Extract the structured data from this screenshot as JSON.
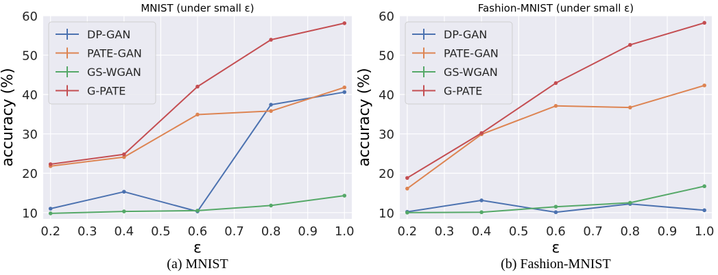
{
  "colors": {
    "plot_bg": "#eaeaf2",
    "grid": "#ffffff",
    "text": "#262626",
    "series": [
      "#4c72b0",
      "#dd8452",
      "#55a868",
      "#c44e52"
    ]
  },
  "chart_data": [
    {
      "type": "line",
      "title": "MNIST (under small ε)",
      "xlabel": "ε",
      "ylabel": "accuracy (%)",
      "x": [
        0.2,
        0.4,
        0.6,
        0.8,
        1.0
      ],
      "xticks": [
        "0.2",
        "0.3",
        "0.4",
        "0.5",
        "0.6",
        "0.7",
        "0.8",
        "0.9",
        "1.0"
      ],
      "yticks": [
        "10",
        "20",
        "30",
        "40",
        "50",
        "60"
      ],
      "xlim": [
        0.18,
        1.02
      ],
      "ylim": [
        8.4,
        60.0
      ],
      "grid": true,
      "legend": "upper-left",
      "series": [
        {
          "name": "DP-GAN",
          "values": [
            11.0,
            15.3,
            10.3,
            37.4,
            40.6
          ]
        },
        {
          "name": "PATE-GAN",
          "values": [
            21.8,
            24.1,
            34.9,
            35.8,
            41.8
          ]
        },
        {
          "name": "GS-WGAN",
          "values": [
            9.8,
            10.3,
            10.5,
            11.8,
            14.3
          ]
        },
        {
          "name": "G-PATE",
          "values": [
            22.3,
            24.8,
            42.0,
            53.9,
            58.1
          ]
        }
      ],
      "caption": "(a) MNIST"
    },
    {
      "type": "line",
      "title": "Fashion-MNIST (under small ε)",
      "xlabel": "ε",
      "ylabel": "accuracy (%)",
      "x": [
        0.2,
        0.4,
        0.6,
        0.8,
        1.0
      ],
      "xticks": [
        "0.2",
        "0.3",
        "0.4",
        "0.5",
        "0.6",
        "0.7",
        "0.8",
        "0.9",
        "1.0"
      ],
      "yticks": [
        "10",
        "20",
        "30",
        "40",
        "50",
        "60"
      ],
      "xlim": [
        0.18,
        1.02
      ],
      "ylim": [
        8.4,
        60.0
      ],
      "grid": true,
      "legend": "upper-left",
      "series": [
        {
          "name": "DP-GAN",
          "values": [
            10.2,
            13.1,
            10.1,
            12.2,
            10.6
          ]
        },
        {
          "name": "PATE-GAN",
          "values": [
            16.1,
            29.9,
            37.1,
            36.7,
            42.3
          ]
        },
        {
          "name": "GS-WGAN",
          "values": [
            10.0,
            10.1,
            11.5,
            12.5,
            16.7
          ]
        },
        {
          "name": "G-PATE",
          "values": [
            18.8,
            30.2,
            42.9,
            52.6,
            58.2
          ]
        }
      ],
      "caption": "(b) Fashion-MNIST"
    }
  ]
}
